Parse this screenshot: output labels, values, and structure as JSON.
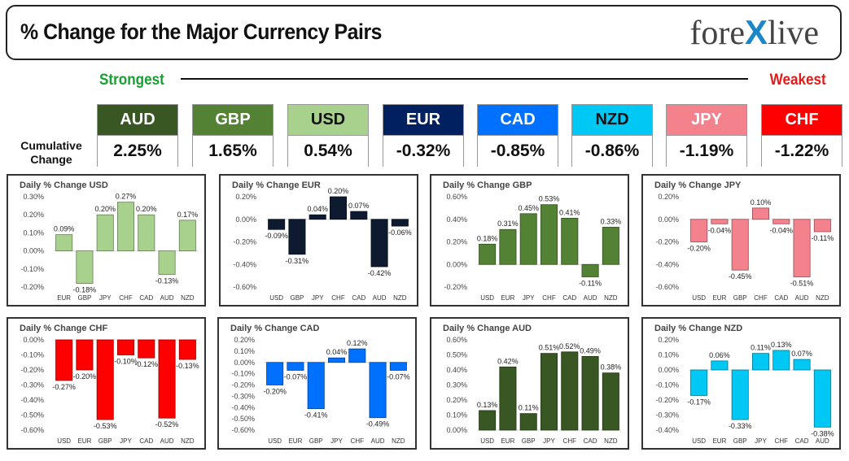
{
  "header": {
    "title": "% Change for the Major Currency Pairs",
    "logo_left": "fore",
    "logo_x": "X",
    "logo_right": "live"
  },
  "ranking": {
    "strongest_label": "Strongest",
    "weakest_label": "Weakest",
    "cumulative_label_line1": "Cumulative",
    "cumulative_label_line2": "Change"
  },
  "tiles": [
    {
      "currency": "AUD",
      "value": "2.25%",
      "bg": "#385723",
      "fg": "#ffffff"
    },
    {
      "currency": "GBP",
      "value": "1.65%",
      "bg": "#548235",
      "fg": "#ffffff"
    },
    {
      "currency": "USD",
      "value": "0.54%",
      "bg": "#a9d18e",
      "fg": "#111111"
    },
    {
      "currency": "EUR",
      "value": "-0.32%",
      "bg": "#002060",
      "fg": "#ffffff"
    },
    {
      "currency": "CAD",
      "value": "-0.85%",
      "bg": "#0070ff",
      "fg": "#ffffff"
    },
    {
      "currency": "NZD",
      "value": "-0.86%",
      "bg": "#00c8f5",
      "fg": "#111111"
    },
    {
      "currency": "JPY",
      "value": "-1.19%",
      "bg": "#f4828c",
      "fg": "#ffffff"
    },
    {
      "currency": "CHF",
      "value": "-1.22%",
      "bg": "#ff0000",
      "fg": "#ffffff"
    }
  ],
  "chart_data": [
    {
      "type": "bar",
      "title": "Daily % Change USD",
      "categories": [
        "EUR",
        "GBP",
        "JPY",
        "CHF",
        "CAD",
        "AUD",
        "NZD"
      ],
      "values": [
        0.09,
        -0.18,
        0.2,
        0.27,
        0.2,
        -0.13,
        0.17
      ],
      "labels": [
        "0.09%",
        "-0.18%",
        "0.20%",
        "0.27%",
        "0.20%",
        "-0.13%",
        "0.17%"
      ],
      "yticks": [
        "0.30%",
        "0.20%",
        "0.10%",
        "0.00%",
        "-0.10%",
        "-0.20%"
      ],
      "ylim": [
        -0.2,
        0.3
      ],
      "color": "#a9d18e"
    },
    {
      "type": "bar",
      "title": "Daily % Change EUR",
      "categories": [
        "USD",
        "GBP",
        "JPY",
        "CHF",
        "CAD",
        "AUD",
        "NZD"
      ],
      "values": [
        -0.09,
        -0.31,
        0.04,
        0.2,
        0.07,
        -0.42,
        -0.06
      ],
      "labels": [
        "-0.09%",
        "-0.31%",
        "0.04%",
        "0.20%",
        "0.07%",
        "-0.42%",
        "-0.06%"
      ],
      "yticks": [
        "0.20%",
        "0.00%",
        "-0.20%",
        "-0.40%",
        "-0.60%"
      ],
      "ylim": [
        -0.6,
        0.2
      ],
      "color": "#0e1a30"
    },
    {
      "type": "bar",
      "title": "Daily % Change GBP",
      "categories": [
        "USD",
        "EUR",
        "JPY",
        "CHF",
        "CAD",
        "AUD",
        "NZD"
      ],
      "values": [
        0.18,
        0.31,
        0.45,
        0.53,
        0.41,
        -0.11,
        0.33
      ],
      "labels": [
        "0.18%",
        "0.31%",
        "0.45%",
        "0.53%",
        "0.41%",
        "-0.11%",
        "0.33%"
      ],
      "yticks": [
        "0.60%",
        "0.40%",
        "0.20%",
        "0.00%",
        "-0.20%"
      ],
      "ylim": [
        -0.2,
        0.6
      ],
      "color": "#548235"
    },
    {
      "type": "bar",
      "title": "Daily % Change JPY",
      "categories": [
        "USD",
        "EUR",
        "GBP",
        "CHF",
        "CAD",
        "AUD",
        "NZD"
      ],
      "values": [
        -0.2,
        -0.04,
        -0.45,
        0.1,
        -0.04,
        -0.51,
        -0.11
      ],
      "labels": [
        "-0.20%",
        "-0.04%",
        "-0.45%",
        "0.10%",
        "-0.04%",
        "-0.51%",
        "-0.11%"
      ],
      "yticks": [
        "0.20%",
        "0.00%",
        "-0.20%",
        "-0.40%",
        "-0.60%"
      ],
      "ylim": [
        -0.6,
        0.2
      ],
      "color": "#f4828c"
    },
    {
      "type": "bar",
      "title": "Daily % Change CHF",
      "categories": [
        "USD",
        "EUR",
        "GBP",
        "JPY",
        "CAD",
        "AUD",
        "NZD"
      ],
      "values": [
        -0.27,
        -0.2,
        -0.53,
        -0.1,
        -0.12,
        -0.52,
        -0.13
      ],
      "labels": [
        "-0.27%",
        "-0.20%",
        "-0.53%",
        "-0.10%",
        "-0.12%",
        "-0.52%",
        "-0.13%"
      ],
      "yticks": [
        "0.00%",
        "-0.10%",
        "-0.20%",
        "-0.30%",
        "-0.40%",
        "-0.50%",
        "-0.60%"
      ],
      "ylim": [
        -0.6,
        0.0
      ],
      "color": "#ff0000"
    },
    {
      "type": "bar",
      "title": "Daily % Change CAD",
      "categories": [
        "USD",
        "EUR",
        "GBP",
        "JPY",
        "CHF",
        "AUD",
        "NZD"
      ],
      "values": [
        -0.2,
        -0.07,
        -0.41,
        0.04,
        0.12,
        -0.49,
        -0.07
      ],
      "labels": [
        "-0.20%",
        "-0.07%",
        "-0.41%",
        "0.04%",
        "0.12%",
        "-0.49%",
        "-0.07%"
      ],
      "yticks": [
        "0.20%",
        "0.10%",
        "0.00%",
        "-0.10%",
        "-0.20%",
        "-0.30%",
        "-0.40%",
        "-0.50%",
        "-0.60%"
      ],
      "ylim": [
        -0.6,
        0.2
      ],
      "color": "#0070ff"
    },
    {
      "type": "bar",
      "title": "Daily % Change AUD",
      "categories": [
        "USD",
        "EUR",
        "GBP",
        "JPY",
        "CHF",
        "CAD",
        "NZD"
      ],
      "values": [
        0.13,
        0.42,
        0.11,
        0.51,
        0.52,
        0.49,
        0.38
      ],
      "labels": [
        "0.13%",
        "0.42%",
        "0.11%",
        "0.51%",
        "0.52%",
        "0.49%",
        "0.38%"
      ],
      "yticks": [
        "0.60%",
        "0.50%",
        "0.40%",
        "0.30%",
        "0.20%",
        "0.10%",
        "0.00%"
      ],
      "ylim": [
        0,
        0.6
      ],
      "color": "#385723"
    },
    {
      "type": "bar",
      "title": "Daily % Change NZD",
      "categories": [
        "USD",
        "EUR",
        "GBP",
        "JPY",
        "CHF",
        "CAD",
        "AUD"
      ],
      "values": [
        -0.17,
        0.06,
        -0.33,
        0.11,
        0.13,
        0.07,
        -0.38
      ],
      "labels": [
        "-0.17%",
        "0.06%",
        "-0.33%",
        "0.11%",
        "0.13%",
        "0.07%",
        "-0.38%"
      ],
      "yticks": [
        "0.20%",
        "0.10%",
        "0.00%",
        "-0.10%",
        "-0.20%",
        "-0.30%",
        "-0.40%"
      ],
      "ylim": [
        -0.4,
        0.2
      ],
      "color": "#00c8f5"
    }
  ]
}
